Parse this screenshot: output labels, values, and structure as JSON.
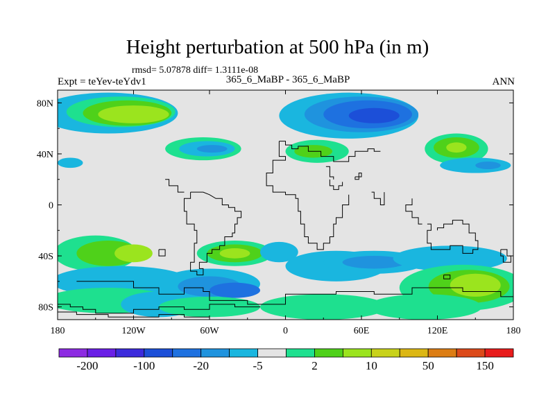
{
  "header": {
    "title": "Height perturbation at 500 hPa (in m)",
    "stats": "rmsd= 5.07878 diff= 1.3111e-08",
    "left_label": "Expt = teYev-teYdv1",
    "center_label": "365_6_MaBP - 365_6_MaBP",
    "right_label": "ANN"
  },
  "colors": {
    "background_fill": "#e4e4e4",
    "land_outline": "#000000"
  },
  "chart_data": {
    "type": "contour-map",
    "title": "Height perturbation at 500 hPa (in m)",
    "x_axis": {
      "range": [
        -180,
        180
      ],
      "ticks": [
        {
          "value": -180,
          "label": "180"
        },
        {
          "value": -120,
          "label": "120W"
        },
        {
          "value": -60,
          "label": "60W"
        },
        {
          "value": 0,
          "label": "0"
        },
        {
          "value": 60,
          "label": "60E"
        },
        {
          "value": 120,
          "label": "120E"
        },
        {
          "value": 180,
          "label": "180"
        }
      ]
    },
    "y_axis": {
      "range": [
        -90,
        90
      ],
      "ticks": [
        {
          "value": 80,
          "label": "80N"
        },
        {
          "value": 40,
          "label": "40N"
        },
        {
          "value": 0,
          "label": "0"
        },
        {
          "value": -40,
          "label": "40S"
        },
        {
          "value": -80,
          "label": "80S"
        }
      ]
    },
    "colorbar": {
      "colors": [
        "#8d2be2",
        "#6a1fe6",
        "#3c2bdc",
        "#1c4fd8",
        "#1e71e0",
        "#1f93de",
        "#1ab6df",
        "#e4e4e4",
        "#1ee08f",
        "#4fd11a",
        "#9be41e",
        "#c8d21a",
        "#dcb714",
        "#dc7d14",
        "#dc4a1a",
        "#e81c1c"
      ],
      "labels": [
        {
          "after_box": 1,
          "text": "-200"
        },
        {
          "after_box": 3,
          "text": "-100"
        },
        {
          "after_box": 5,
          "text": "-20"
        },
        {
          "after_box": 7,
          "text": "-5"
        },
        {
          "after_box": 9,
          "text": "2"
        },
        {
          "after_box": 11,
          "text": "10"
        },
        {
          "after_box": 13,
          "text": "50"
        },
        {
          "after_box": 15,
          "text": "150"
        }
      ]
    },
    "regions": [
      {
        "lon": -140,
        "lat": 72,
        "rx": 55,
        "ry": 16,
        "c": "#1ab6df"
      },
      {
        "lon": -130,
        "lat": 73,
        "rx": 43,
        "ry": 12,
        "c": "#1ee08f"
      },
      {
        "lon": -125,
        "lat": 72,
        "rx": 35,
        "ry": 10,
        "c": "#4fd11a"
      },
      {
        "lon": -120,
        "lat": 71,
        "rx": 28,
        "ry": 7,
        "c": "#9be41e"
      },
      {
        "lon": -65,
        "lat": 44,
        "rx": 30,
        "ry": 9,
        "c": "#1ee08f"
      },
      {
        "lon": -62,
        "lat": 44,
        "rx": 22,
        "ry": 6,
        "c": "#1ab6df"
      },
      {
        "lon": -58,
        "lat": 44,
        "rx": 12,
        "ry": 3,
        "c": "#1f93de"
      },
      {
        "lon": -170,
        "lat": 33,
        "rx": 10,
        "ry": 4,
        "c": "#1ab6df"
      },
      {
        "lon": 50,
        "lat": 70,
        "rx": 55,
        "ry": 18,
        "c": "#1ab6df"
      },
      {
        "lon": 60,
        "lat": 71,
        "rx": 45,
        "ry": 14,
        "c": "#1f93de"
      },
      {
        "lon": 65,
        "lat": 71,
        "rx": 35,
        "ry": 11,
        "c": "#1e71e0"
      },
      {
        "lon": 70,
        "lat": 70,
        "rx": 20,
        "ry": 6,
        "c": "#1c4fd8"
      },
      {
        "lon": 25,
        "lat": 42,
        "rx": 25,
        "ry": 9,
        "c": "#1ee08f"
      },
      {
        "lon": 22,
        "lat": 42,
        "rx": 15,
        "ry": 5,
        "c": "#4fd11a"
      },
      {
        "lon": 135,
        "lat": 44,
        "rx": 25,
        "ry": 12,
        "c": "#1ee08f"
      },
      {
        "lon": 135,
        "lat": 45,
        "rx": 18,
        "ry": 8,
        "c": "#4fd11a"
      },
      {
        "lon": 135,
        "lat": 45,
        "rx": 8,
        "ry": 4,
        "c": "#9be41e"
      },
      {
        "lon": 150,
        "lat": 31,
        "rx": 28,
        "ry": 6,
        "c": "#1ab6df"
      },
      {
        "lon": 160,
        "lat": 31,
        "rx": 10,
        "ry": 3,
        "c": "#1f93de"
      },
      {
        "lon": -150,
        "lat": -38,
        "rx": 33,
        "ry": 14,
        "c": "#1ee08f"
      },
      {
        "lon": -140,
        "lat": -38,
        "rx": 25,
        "ry": 10,
        "c": "#4fd11a"
      },
      {
        "lon": -120,
        "lat": -38,
        "rx": 15,
        "ry": 7,
        "c": "#9be41e"
      },
      {
        "lon": -40,
        "lat": -38,
        "rx": 30,
        "ry": 10,
        "c": "#1ee08f"
      },
      {
        "lon": -40,
        "lat": -38,
        "rx": 22,
        "ry": 7,
        "c": "#4fd11a"
      },
      {
        "lon": -40,
        "lat": -38,
        "rx": 12,
        "ry": 4,
        "c": "#9be41e"
      },
      {
        "lon": -5,
        "lat": -37,
        "rx": 15,
        "ry": 8,
        "c": "#1ab6df"
      },
      {
        "lon": -130,
        "lat": -60,
        "rx": 55,
        "ry": 12,
        "c": "#1ab6df"
      },
      {
        "lon": -60,
        "lat": -62,
        "rx": 40,
        "ry": 12,
        "c": "#1ab6df"
      },
      {
        "lon": -60,
        "lat": -64,
        "rx": 25,
        "ry": 8,
        "c": "#1f93de"
      },
      {
        "lon": -40,
        "lat": -67,
        "rx": 20,
        "ry": 6,
        "c": "#1e71e0"
      },
      {
        "lon": 40,
        "lat": -48,
        "rx": 40,
        "ry": 12,
        "c": "#1ab6df"
      },
      {
        "lon": 70,
        "lat": -45,
        "rx": 40,
        "ry": 9,
        "c": "#1ab6df"
      },
      {
        "lon": 70,
        "lat": -45,
        "rx": 25,
        "ry": 5,
        "c": "#1f93de"
      },
      {
        "lon": 130,
        "lat": -42,
        "rx": 45,
        "ry": 10,
        "c": "#1ab6df"
      },
      {
        "lon": 140,
        "lat": -65,
        "rx": 50,
        "ry": 18,
        "c": "#1ee08f"
      },
      {
        "lon": 145,
        "lat": -64,
        "rx": 32,
        "ry": 13,
        "c": "#4fd11a"
      },
      {
        "lon": 150,
        "lat": -63,
        "rx": 20,
        "ry": 9,
        "c": "#9be41e"
      },
      {
        "lon": -140,
        "lat": -75,
        "rx": 50,
        "ry": 10,
        "c": "#1ee08f"
      },
      {
        "lon": -100,
        "lat": -78,
        "rx": 30,
        "ry": 10,
        "c": "#1ab6df"
      },
      {
        "lon": -60,
        "lat": -80,
        "rx": 40,
        "ry": 8,
        "c": "#1ee08f"
      },
      {
        "lon": 30,
        "lat": -80,
        "rx": 50,
        "ry": 10,
        "c": "#1ee08f"
      },
      {
        "lon": 110,
        "lat": -80,
        "rx": 45,
        "ry": 10,
        "c": "#1ee08f"
      }
    ],
    "coastlines": [
      [
        [
          -5,
          50
        ],
        [
          0,
          50
        ],
        [
          0,
          47
        ],
        [
          5,
          47
        ],
        [
          5,
          44
        ],
        [
          10,
          44
        ],
        [
          10,
          46
        ],
        [
          18,
          46
        ],
        [
          18,
          42
        ],
        [
          28,
          42
        ],
        [
          28,
          38
        ],
        [
          38,
          38
        ],
        [
          38,
          34
        ],
        [
          50,
          34
        ],
        [
          50,
          38
        ],
        [
          55,
          38
        ],
        [
          55,
          42
        ],
        [
          65,
          42
        ],
        [
          65,
          44
        ],
        [
          70,
          44
        ],
        [
          70,
          42
        ],
        [
          75,
          42
        ]
      ],
      [
        [
          -5,
          50
        ],
        [
          -5,
          38
        ],
        [
          0,
          38
        ],
        [
          0,
          35
        ],
        [
          -10,
          35
        ],
        [
          -10,
          25
        ],
        [
          -15,
          25
        ],
        [
          -15,
          15
        ],
        [
          -10,
          15
        ],
        [
          -10,
          10
        ],
        [
          0,
          10
        ],
        [
          0,
          8
        ],
        [
          8,
          8
        ],
        [
          8,
          5
        ],
        [
          10,
          5
        ],
        [
          10,
          -5
        ],
        [
          12,
          -5
        ],
        [
          12,
          -15
        ],
        [
          15,
          -15
        ],
        [
          15,
          -25
        ],
        [
          18,
          -25
        ],
        [
          18,
          -30
        ],
        [
          25,
          -30
        ],
        [
          25,
          -35
        ],
        [
          30,
          -35
        ],
        [
          30,
          -30
        ],
        [
          35,
          -30
        ],
        [
          35,
          -25
        ],
        [
          38,
          -25
        ],
        [
          38,
          -15
        ],
        [
          40,
          -15
        ],
        [
          40,
          -10
        ],
        [
          45,
          -10
        ],
        [
          45,
          0
        ],
        [
          50,
          0
        ],
        [
          50,
          8
        ]
      ],
      [
        [
          35,
          20
        ],
        [
          35,
          15
        ],
        [
          38,
          15
        ],
        [
          38,
          12
        ],
        [
          42,
          12
        ],
        [
          42,
          15
        ],
        [
          45,
          15
        ],
        [
          45,
          18
        ]
      ],
      [
        [
          32,
          30
        ],
        [
          35,
          30
        ],
        [
          35,
          22
        ],
        [
          38,
          22
        ],
        [
          38,
          20
        ]
      ],
      [
        [
          55,
          22
        ],
        [
          60,
          22
        ],
        [
          60,
          25
        ],
        [
          58,
          25
        ],
        [
          58,
          20
        ],
        [
          55,
          20
        ],
        [
          55,
          22
        ]
      ],
      [
        [
          68,
          10
        ],
        [
          70,
          10
        ],
        [
          70,
          5
        ],
        [
          75,
          5
        ],
        [
          75,
          0
        ],
        [
          78,
          0
        ],
        [
          78,
          10
        ]
      ],
      [
        [
          100,
          5
        ],
        [
          100,
          0
        ],
        [
          95,
          0
        ],
        [
          95,
          -5
        ],
        [
          100,
          -5
        ],
        [
          100,
          -10
        ],
        [
          105,
          -10
        ],
        [
          105,
          -15
        ],
        [
          108,
          -15
        ]
      ],
      [
        [
          112,
          -15
        ],
        [
          115,
          -15
        ],
        [
          115,
          -20
        ],
        [
          112,
          -20
        ],
        [
          112,
          -30
        ],
        [
          115,
          -30
        ],
        [
          115,
          -35
        ],
        [
          130,
          -35
        ],
        [
          130,
          -32
        ],
        [
          140,
          -32
        ],
        [
          140,
          -38
        ],
        [
          148,
          -38
        ],
        [
          148,
          -35
        ],
        [
          152,
          -35
        ],
        [
          152,
          -28
        ],
        [
          150,
          -28
        ],
        [
          150,
          -22
        ],
        [
          145,
          -22
        ],
        [
          145,
          -15
        ],
        [
          140,
          -15
        ],
        [
          140,
          -12
        ],
        [
          132,
          -12
        ],
        [
          132,
          -15
        ],
        [
          125,
          -15
        ],
        [
          125,
          -18
        ],
        [
          120,
          -18
        ],
        [
          120,
          -20
        ]
      ],
      [
        [
          -75,
          10
        ],
        [
          -75,
          5
        ],
        [
          -80,
          5
        ],
        [
          -80,
          0
        ],
        [
          -80,
          -5
        ],
        [
          -78,
          -5
        ],
        [
          -78,
          -15
        ],
        [
          -72,
          -15
        ],
        [
          -72,
          -20
        ],
        [
          -70,
          -20
        ],
        [
          -70,
          -30
        ],
        [
          -72,
          -30
        ],
        [
          -72,
          -45
        ],
        [
          -75,
          -45
        ],
        [
          -75,
          -52
        ],
        [
          -70,
          -52
        ],
        [
          -70,
          -55
        ],
        [
          -65,
          -55
        ],
        [
          -65,
          -50
        ],
        [
          -68,
          -50
        ],
        [
          -68,
          -45
        ],
        [
          -62,
          -45
        ],
        [
          -62,
          -38
        ],
        [
          -58,
          -38
        ],
        [
          -58,
          -35
        ],
        [
          -52,
          -35
        ],
        [
          -52,
          -32
        ],
        [
          -48,
          -32
        ],
        [
          -48,
          -25
        ],
        [
          -42,
          -25
        ],
        [
          -42,
          -22
        ],
        [
          -40,
          -22
        ],
        [
          -40,
          -15
        ],
        [
          -38,
          -15
        ],
        [
          -38,
          -10
        ],
        [
          -35,
          -10
        ],
        [
          -35,
          -5
        ],
        [
          -40,
          -5
        ],
        [
          -40,
          -2
        ],
        [
          -45,
          -2
        ],
        [
          -45,
          0
        ],
        [
          -50,
          0
        ],
        [
          -50,
          5
        ],
        [
          -55,
          5
        ],
        [
          -60,
          8
        ],
        [
          -65,
          10
        ],
        [
          -75,
          10
        ]
      ],
      [
        [
          -95,
          20
        ],
        [
          -92,
          20
        ],
        [
          -92,
          15
        ],
        [
          -85,
          15
        ],
        [
          -85,
          10
        ],
        [
          -80,
          10
        ]
      ],
      [
        [
          -165,
          -60
        ],
        [
          -120,
          -60
        ],
        [
          -120,
          -65
        ],
        [
          -100,
          -65
        ],
        [
          -100,
          -70
        ],
        [
          -80,
          -70
        ],
        [
          -80,
          -65
        ],
        [
          -65,
          -65
        ],
        [
          -65,
          -68
        ],
        [
          -60,
          -68
        ],
        [
          -60,
          -75
        ],
        [
          -30,
          -75
        ],
        [
          -30,
          -78
        ],
        [
          0,
          -78
        ],
        [
          0,
          -70
        ],
        [
          40,
          -70
        ],
        [
          40,
          -68
        ],
        [
          70,
          -68
        ],
        [
          70,
          -70
        ],
        [
          100,
          -70
        ],
        [
          100,
          -65
        ],
        [
          140,
          -65
        ],
        [
          140,
          -68
        ],
        [
          170,
          -68
        ],
        [
          170,
          -72
        ],
        [
          180,
          -72
        ]
      ],
      [
        [
          -180,
          -78
        ],
        [
          -170,
          -78
        ],
        [
          -170,
          -80
        ],
        [
          -160,
          -80
        ],
        [
          -160,
          -82
        ],
        [
          -150,
          -82
        ],
        [
          -150,
          -85
        ],
        [
          -120,
          -85
        ],
        [
          -120,
          -82
        ],
        [
          -100,
          -82
        ],
        [
          -100,
          -80
        ],
        [
          -80,
          -80
        ],
        [
          -80,
          -82
        ],
        [
          -60,
          -82
        ],
        [
          -60,
          -78
        ],
        [
          -40,
          -78
        ],
        [
          -40,
          -80
        ],
        [
          -20,
          -80
        ]
      ],
      [
        [
          -180,
          -84
        ],
        [
          -165,
          -84
        ],
        [
          -165,
          -86
        ],
        [
          -140,
          -86
        ],
        [
          -140,
          -88
        ],
        [
          -100,
          -88
        ],
        [
          -100,
          -86
        ],
        [
          -80,
          -86
        ],
        [
          -80,
          -88
        ],
        [
          -60,
          -88
        ]
      ],
      [
        [
          170,
          -35
        ],
        [
          175,
          -35
        ],
        [
          175,
          -40
        ],
        [
          178,
          -40
        ],
        [
          178,
          -45
        ],
        [
          172,
          -45
        ],
        [
          172,
          -40
        ],
        [
          170,
          -40
        ],
        [
          170,
          -35
        ]
      ],
      [
        [
          125,
          -55
        ],
        [
          130,
          -55
        ],
        [
          130,
          -58
        ],
        [
          125,
          -58
        ],
        [
          125,
          -55
        ]
      ],
      [
        [
          -100,
          -35
        ],
        [
          -95,
          -35
        ],
        [
          -95,
          -40
        ],
        [
          -100,
          -40
        ],
        [
          -100,
          -35
        ]
      ]
    ]
  }
}
